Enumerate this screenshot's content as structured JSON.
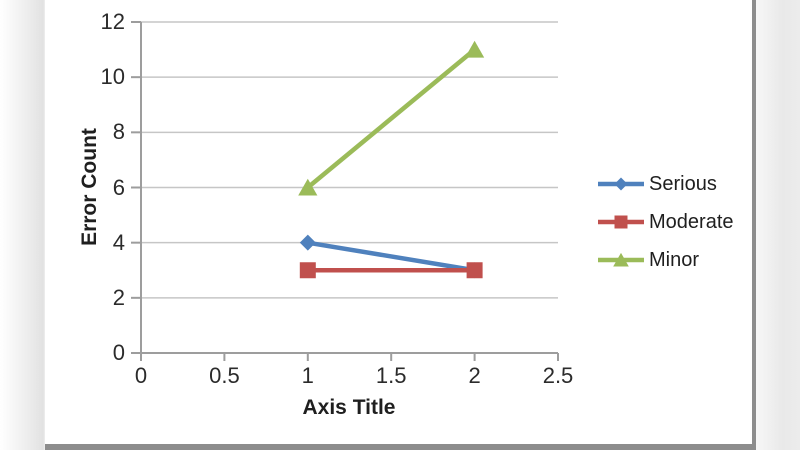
{
  "chart_data": {
    "type": "line",
    "title": "",
    "xlabel": "Axis Title",
    "ylabel": "Error Count",
    "x": [
      1,
      2
    ],
    "series": [
      {
        "name": "Serious",
        "color": "#4F81BD",
        "marker": "diamond",
        "values": [
          4,
          3
        ]
      },
      {
        "name": "Moderate",
        "color": "#C0504D",
        "marker": "square",
        "values": [
          3,
          3
        ]
      },
      {
        "name": "Minor",
        "color": "#9BBB59",
        "marker": "triangle",
        "values": [
          6,
          11
        ]
      }
    ],
    "xlim": [
      0,
      2.5
    ],
    "ylim": [
      0,
      12
    ],
    "xticks": [
      0,
      0.5,
      1,
      1.5,
      2,
      2.5
    ],
    "xtick_labels": [
      "0",
      "0.5",
      "1",
      "1.5",
      "2",
      "2.5"
    ],
    "yticks": [
      0,
      2,
      4,
      6,
      8,
      10,
      12
    ],
    "ytick_labels": [
      "0",
      "2",
      "4",
      "6",
      "8",
      "10",
      "12"
    ],
    "grid": "horizontal",
    "legend_position": "right",
    "colors": {
      "gridline": "#c6c6c6",
      "axis": "#9d9d9d",
      "text": "#2b2b2b"
    }
  }
}
